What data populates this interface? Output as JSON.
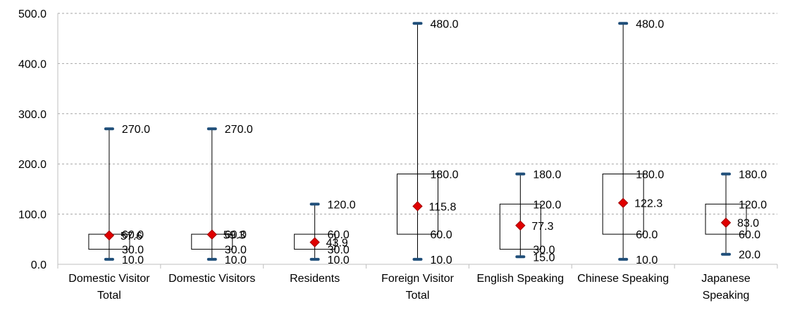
{
  "chart_data": {
    "type": "boxplot",
    "title": "",
    "xlabel": "",
    "ylabel": "",
    "ylim": [
      0,
      500
    ],
    "grid": "horizontal-dashed",
    "y_ticks": [
      "0.0",
      "100.0",
      "200.0",
      "300.0",
      "400.0",
      "500.0"
    ],
    "categories": [
      [
        "Domestic Visitor",
        "Total"
      ],
      [
        "Domestic Visitors"
      ],
      [
        "Residents"
      ],
      [
        "Foreign Visitor",
        "Total"
      ],
      [
        "English Speaking"
      ],
      [
        "Chinese Speaking"
      ],
      [
        "Japanese",
        "Speaking"
      ]
    ],
    "series": [
      {
        "min": 10,
        "q1": 30,
        "q3": 60,
        "max": 270,
        "mean": 57.6,
        "labels": {
          "min": "10.0",
          "q1": "30.0",
          "q3": "60.0",
          "max": "270.0",
          "mean": "57.6"
        }
      },
      {
        "min": 10,
        "q1": 30,
        "q3": 60,
        "max": 270,
        "mean": 59.3,
        "labels": {
          "min": "10.0",
          "q1": "30.0",
          "q3": "60.0",
          "max": "270.0",
          "mean": "59.3"
        }
      },
      {
        "min": 10,
        "q1": 30,
        "q3": 60,
        "max": 120,
        "mean": 43.9,
        "labels": {
          "min": "10.0",
          "q1": "30.0",
          "q3": "60.0",
          "max": "120.0",
          "mean": "43.9"
        }
      },
      {
        "min": 10,
        "q1": 60,
        "q3": 180,
        "max": 480,
        "mean": 115.8,
        "labels": {
          "min": "10.0",
          "q1": "60.0",
          "q3": "180.0",
          "max": "480.0",
          "mean": "115.8"
        }
      },
      {
        "min": 15,
        "q1": 30,
        "q3": 120,
        "max": 180,
        "mean": 77.3,
        "labels": {
          "min": "15.0",
          "q1": "30.0",
          "q3": "120.0",
          "max": "180.0",
          "mean": "77.3"
        }
      },
      {
        "min": 10,
        "q1": 60,
        "q3": 180,
        "max": 480,
        "mean": 122.3,
        "labels": {
          "min": "10.0",
          "q1": "60.0",
          "q3": "180.0",
          "max": "480.0",
          "mean": "122.3"
        }
      },
      {
        "min": 20,
        "q1": 60,
        "q3": 120,
        "max": 180,
        "mean": 83.0,
        "labels": {
          "min": "20.0",
          "q1": "60.0",
          "q3": "120.0",
          "max": "180.0",
          "mean": "83.0"
        }
      }
    ],
    "colors": {
      "whisker_cap": "#1f4e79",
      "mean_marker": "#e00000",
      "mean_outline": "#a00000",
      "grid": "#a6a6a6",
      "axis": "#bfbfbf"
    }
  }
}
